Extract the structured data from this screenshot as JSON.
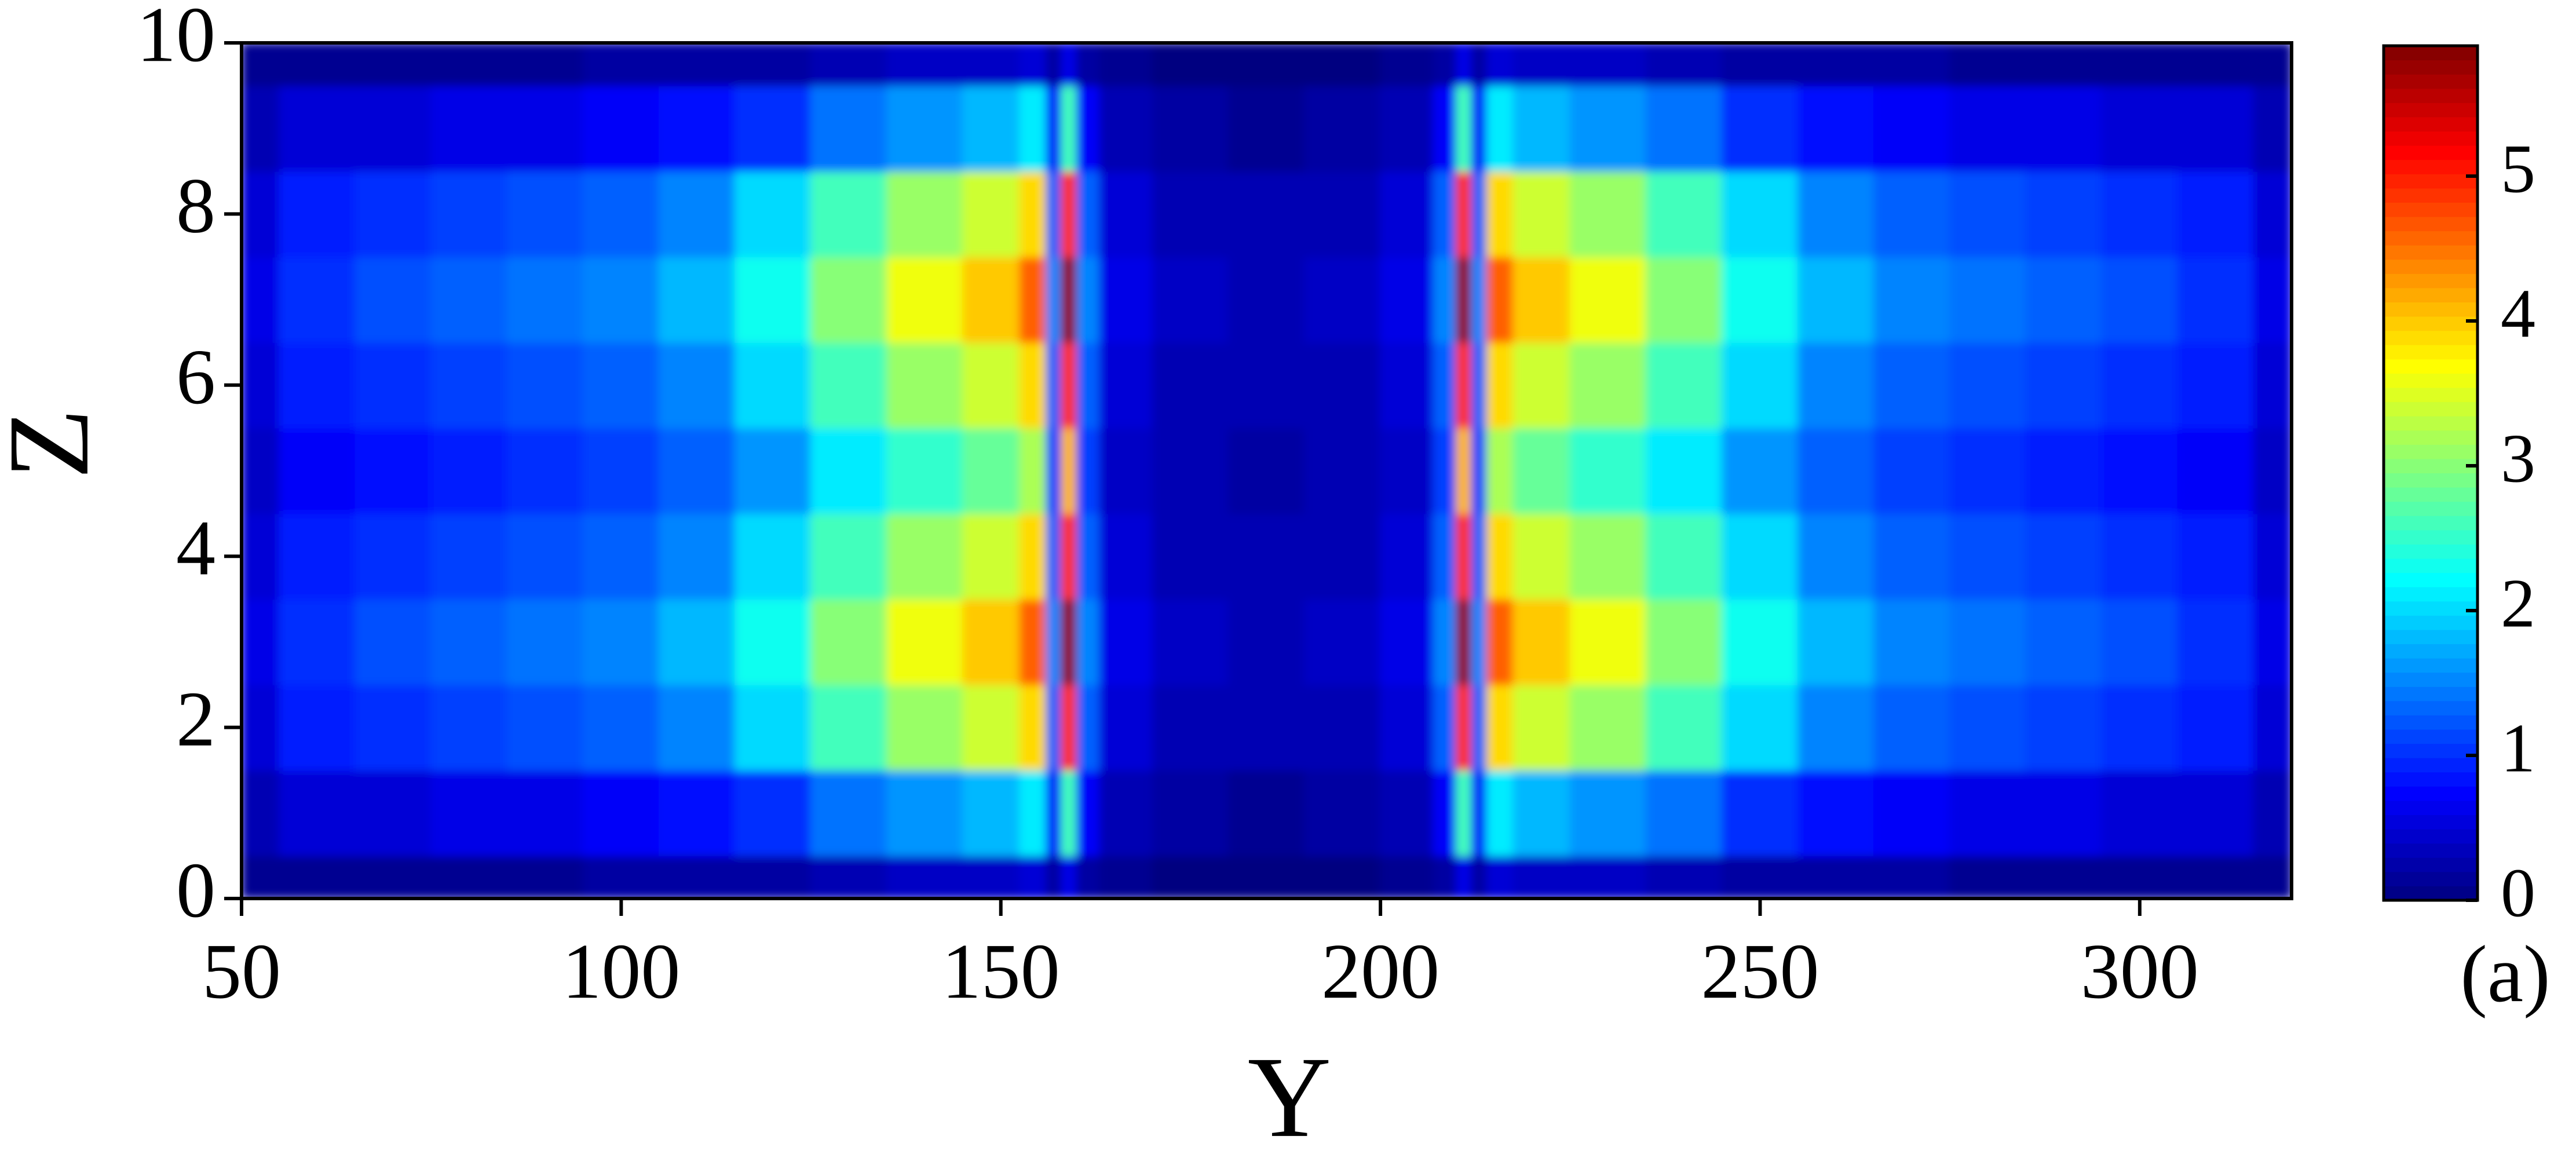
{
  "chart_data": {
    "type": "heatmap",
    "xlabel": "Y",
    "ylabel": "Z",
    "annotation": "(a)",
    "colormap": "jet",
    "x": [
      50,
      60,
      70,
      80,
      90,
      100,
      110,
      120,
      130,
      140,
      150,
      155,
      157,
      159,
      161,
      165,
      175,
      185,
      195,
      205,
      209,
      211,
      213,
      215,
      220,
      230,
      240,
      250,
      260,
      270,
      280,
      290,
      300,
      310,
      320
    ],
    "y": [
      0,
      1,
      2,
      3,
      4,
      5,
      6,
      7,
      8,
      9,
      10
    ],
    "z": [
      [
        0.1,
        0.1,
        0.1,
        0.1,
        0.1,
        0.2,
        0.2,
        0.2,
        0.3,
        0.4,
        0.4,
        0.5,
        0.2,
        0.6,
        0.2,
        0.1,
        0.0,
        0.0,
        0.0,
        0.1,
        0.2,
        0.6,
        0.2,
        0.5,
        0.4,
        0.4,
        0.3,
        0.2,
        0.2,
        0.2,
        0.1,
        0.1,
        0.1,
        0.1,
        0.1
      ],
      [
        0.3,
        0.5,
        0.5,
        0.6,
        0.6,
        0.7,
        0.8,
        1.0,
        1.4,
        1.6,
        1.8,
        2.1,
        0.7,
        2.6,
        0.7,
        0.3,
        0.2,
        0.1,
        0.2,
        0.3,
        0.7,
        2.6,
        0.7,
        2.1,
        1.8,
        1.6,
        1.4,
        1.0,
        0.8,
        0.7,
        0.6,
        0.6,
        0.5,
        0.5,
        0.3
      ],
      [
        0.5,
        0.9,
        1.0,
        1.1,
        1.2,
        1.3,
        1.5,
        2.0,
        2.6,
        3.1,
        3.4,
        3.9,
        1.3,
        4.9,
        1.3,
        0.5,
        0.3,
        0.3,
        0.3,
        0.5,
        1.3,
        4.9,
        1.3,
        3.9,
        3.4,
        3.1,
        2.6,
        2.0,
        1.5,
        1.3,
        1.2,
        1.1,
        1.0,
        0.9,
        0.5
      ],
      [
        0.6,
        1.0,
        1.2,
        1.3,
        1.4,
        1.5,
        1.8,
        2.3,
        3.0,
        3.6,
        4.0,
        4.6,
        1.5,
        5.8,
        1.5,
        0.6,
        0.4,
        0.3,
        0.4,
        0.6,
        1.5,
        5.8,
        1.5,
        4.6,
        4.0,
        3.6,
        3.0,
        2.3,
        1.8,
        1.5,
        1.4,
        1.3,
        1.2,
        1.0,
        0.6
      ],
      [
        0.5,
        0.9,
        1.0,
        1.1,
        1.2,
        1.3,
        1.5,
        2.0,
        2.6,
        3.1,
        3.4,
        3.9,
        1.3,
        4.9,
        1.3,
        0.5,
        0.3,
        0.3,
        0.3,
        0.5,
        1.3,
        4.9,
        1.3,
        3.9,
        3.4,
        3.1,
        2.6,
        2.0,
        1.5,
        1.3,
        1.2,
        1.1,
        1.0,
        0.9,
        0.5
      ],
      [
        0.4,
        0.7,
        0.8,
        0.9,
        1.0,
        1.1,
        1.3,
        1.6,
        2.1,
        2.5,
        2.8,
        3.2,
        1.1,
        4.1,
        1.1,
        0.4,
        0.3,
        0.2,
        0.3,
        0.4,
        1.1,
        4.1,
        1.1,
        3.2,
        2.8,
        2.5,
        2.1,
        1.6,
        1.3,
        1.1,
        1.0,
        0.9,
        0.8,
        0.7,
        0.4
      ],
      [
        0.5,
        0.9,
        1.0,
        1.1,
        1.2,
        1.3,
        1.5,
        2.0,
        2.6,
        3.1,
        3.4,
        3.9,
        1.3,
        4.9,
        1.3,
        0.5,
        0.3,
        0.3,
        0.3,
        0.5,
        1.3,
        4.9,
        1.3,
        3.9,
        3.4,
        3.1,
        2.6,
        2.0,
        1.5,
        1.3,
        1.2,
        1.1,
        1.0,
        0.9,
        0.5
      ],
      [
        0.6,
        1.0,
        1.2,
        1.3,
        1.4,
        1.5,
        1.8,
        2.3,
        3.0,
        3.6,
        4.0,
        4.6,
        1.5,
        5.8,
        1.5,
        0.6,
        0.4,
        0.3,
        0.4,
        0.6,
        1.5,
        5.8,
        1.5,
        4.6,
        4.0,
        3.6,
        3.0,
        2.3,
        1.8,
        1.5,
        1.4,
        1.3,
        1.2,
        1.0,
        0.6
      ],
      [
        0.5,
        0.9,
        1.0,
        1.1,
        1.2,
        1.3,
        1.5,
        2.0,
        2.6,
        3.1,
        3.4,
        3.9,
        1.3,
        4.9,
        1.3,
        0.5,
        0.3,
        0.3,
        0.3,
        0.5,
        1.3,
        4.9,
        1.3,
        3.9,
        3.4,
        3.1,
        2.6,
        2.0,
        1.5,
        1.3,
        1.2,
        1.1,
        1.0,
        0.9,
        0.5
      ],
      [
        0.3,
        0.5,
        0.5,
        0.6,
        0.6,
        0.7,
        0.8,
        1.0,
        1.4,
        1.6,
        1.8,
        2.1,
        0.7,
        2.6,
        0.7,
        0.3,
        0.2,
        0.1,
        0.2,
        0.3,
        0.7,
        2.6,
        0.7,
        2.1,
        1.8,
        1.6,
        1.4,
        1.0,
        0.8,
        0.7,
        0.6,
        0.6,
        0.5,
        0.5,
        0.3
      ],
      [
        0.1,
        0.1,
        0.1,
        0.1,
        0.1,
        0.2,
        0.2,
        0.2,
        0.3,
        0.4,
        0.4,
        0.5,
        0.2,
        0.6,
        0.2,
        0.1,
        0.0,
        0.0,
        0.0,
        0.1,
        0.2,
        0.6,
        0.2,
        0.5,
        0.4,
        0.4,
        0.3,
        0.2,
        0.2,
        0.2,
        0.1,
        0.1,
        0.1,
        0.1,
        0.1
      ]
    ],
    "xlim": [
      50,
      320
    ],
    "xticks": [
      50,
      100,
      150,
      200,
      250,
      300
    ],
    "ylim": [
      0,
      10
    ],
    "yticks": [
      0,
      2,
      4,
      6,
      8,
      10
    ],
    "zlim": [
      0,
      5.9
    ],
    "colorbar_ticks": [
      0,
      1,
      2,
      3,
      4,
      5
    ]
  }
}
